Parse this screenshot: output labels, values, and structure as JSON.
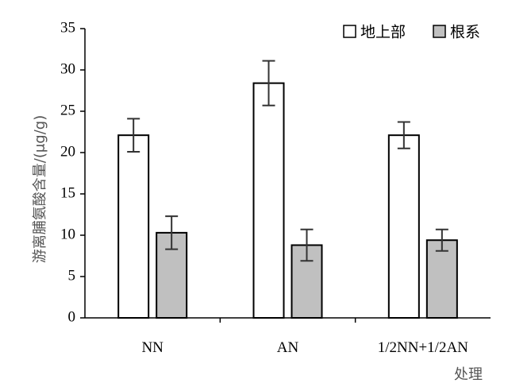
{
  "chart_data": {
    "type": "bar",
    "categories": [
      "NN",
      "AN",
      "1/2NN+1/2AN"
    ],
    "series": [
      {
        "name": "地上部",
        "values": [
          22.1,
          28.4,
          22.1
        ],
        "errors": [
          2.0,
          2.7,
          1.6
        ],
        "color": "#ffffff"
      },
      {
        "name": "根系",
        "values": [
          10.3,
          8.8,
          9.4
        ],
        "errors": [
          2.0,
          1.9,
          1.3
        ],
        "color": "#c0c0c0"
      }
    ],
    "xlabel": "处理",
    "ylabel": "游离脯氨酸含量/(μg/g)",
    "ylim": [
      0,
      35
    ],
    "yticks": [
      0,
      5,
      10,
      15,
      20,
      25,
      30,
      35
    ],
    "grid": false,
    "legend_position": "top-right"
  }
}
